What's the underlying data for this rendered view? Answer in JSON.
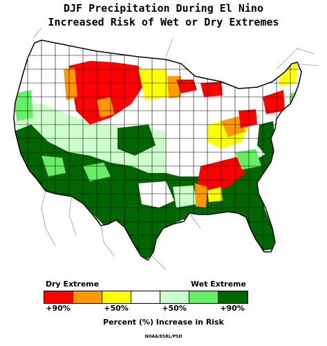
{
  "title_line1": "DJF Precipitation During El Nino",
  "title_line2": "Increased Risk of Wet or Dry Extremes",
  "legend": {
    "dry_label": "Dry Extreme",
    "wet_label": "Wet Extreme",
    "categories": [
      {
        "color": "#ff0000"
      },
      {
        "color": "#ff9900"
      },
      {
        "color": "#ffff00"
      },
      {
        "color": "#ffffff"
      },
      {
        "color": "#ccffcc"
      },
      {
        "color": "#66ee66"
      },
      {
        "color": "#006600"
      }
    ],
    "ticks": [
      "+90%",
      "+50%",
      "+50%",
      "+90%"
    ],
    "axis_title": "Percent (%) Increase in Risk"
  },
  "credit": "NOAA/ESRL/PSD"
}
